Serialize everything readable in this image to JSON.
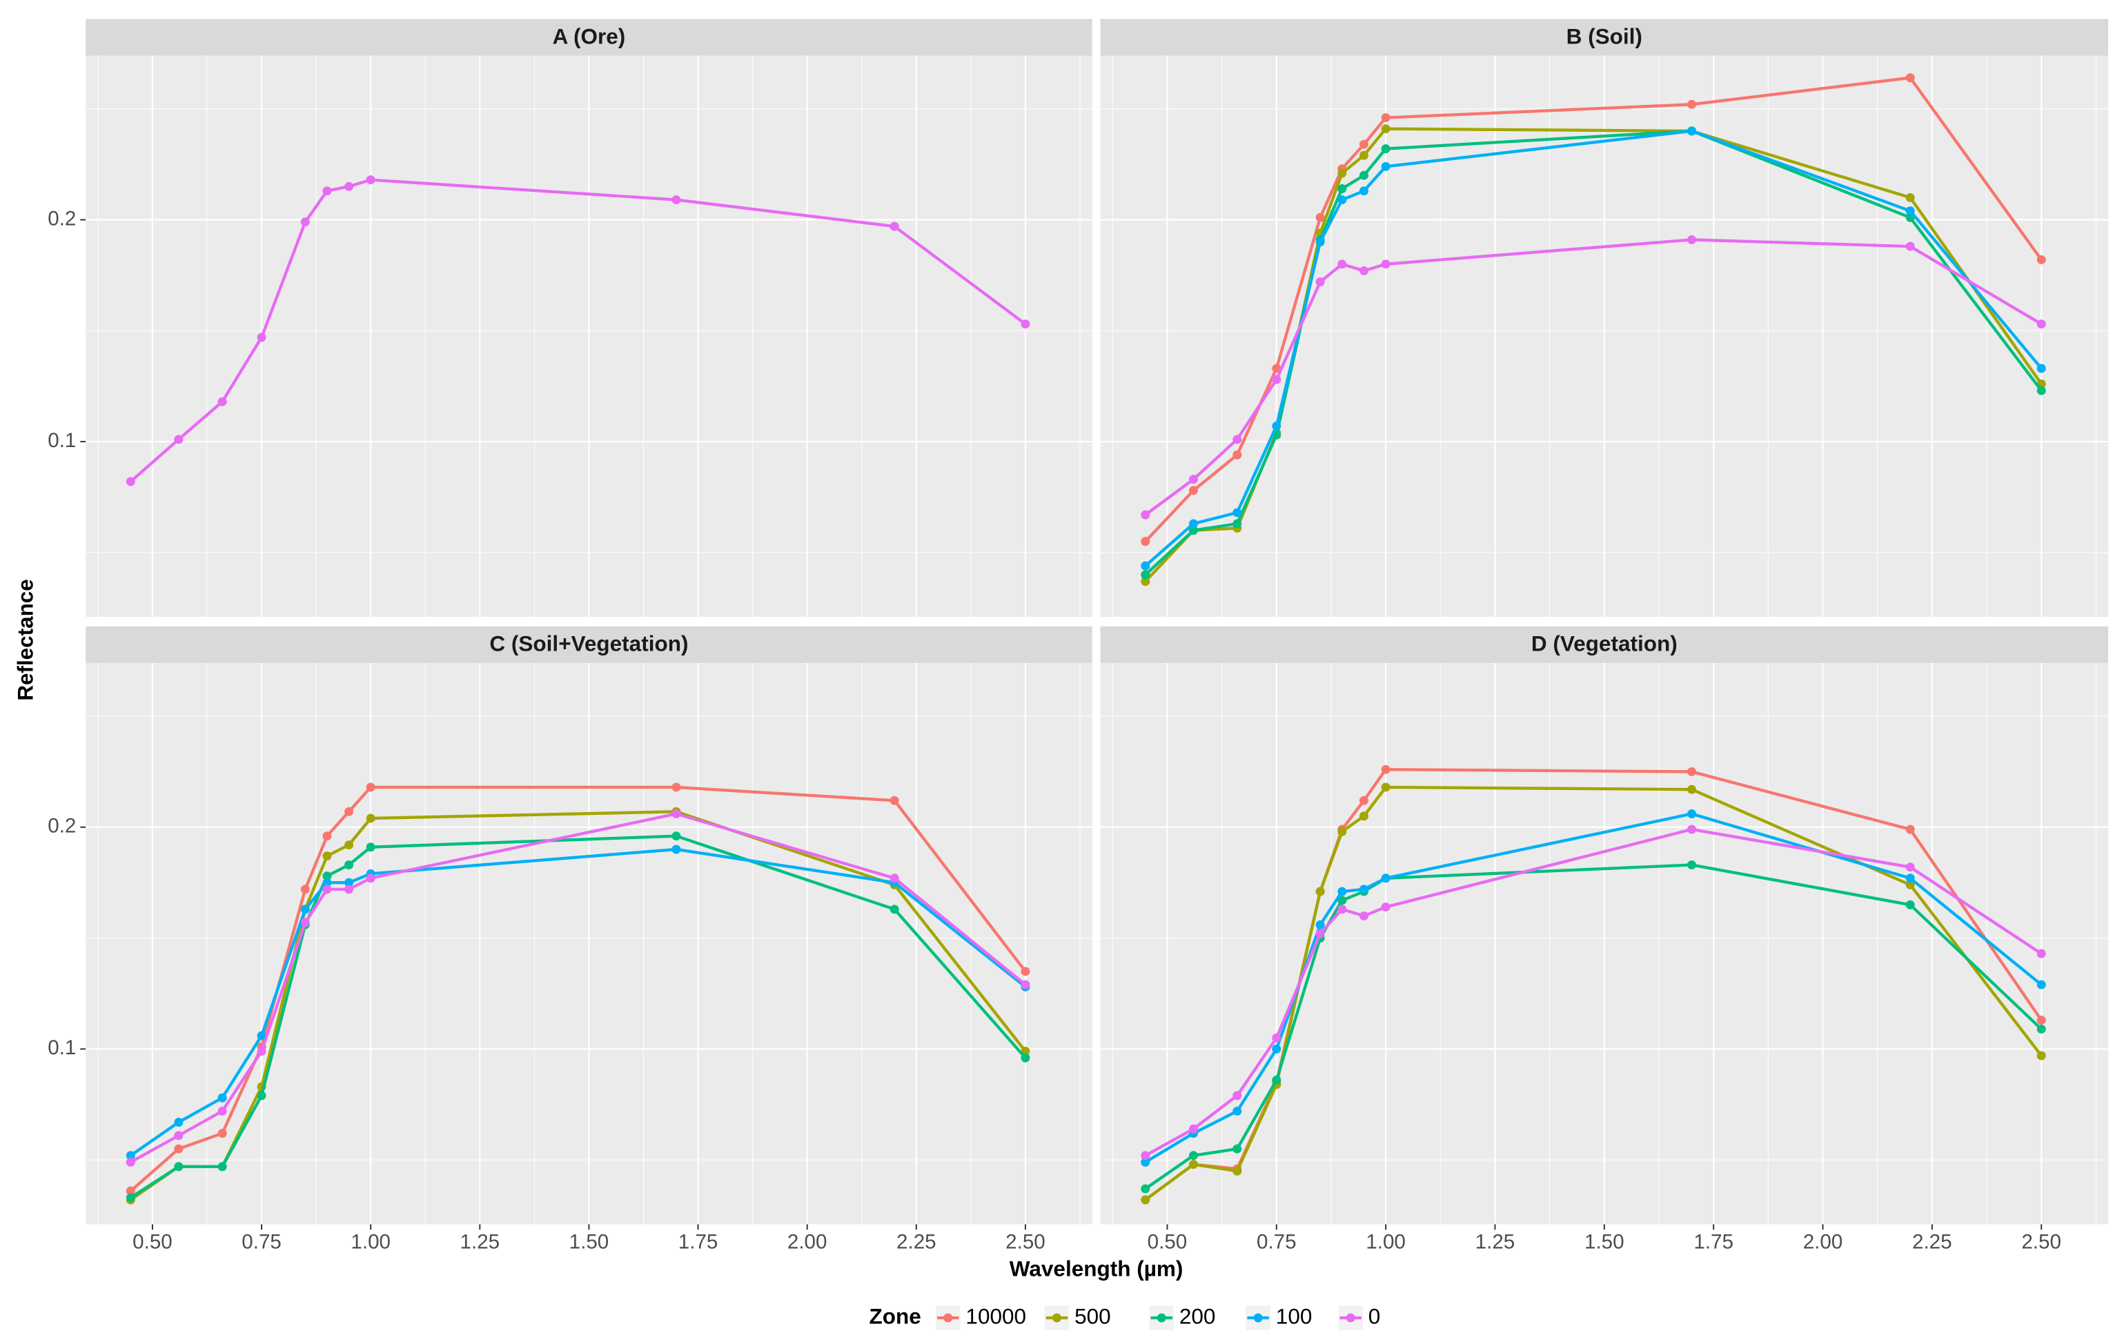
{
  "chart_data": {
    "type": "line",
    "xlabel": "Wavelength (µm)",
    "ylabel": "Reflectance",
    "legend_title": "Zone",
    "x": [
      0.45,
      0.56,
      0.66,
      0.75,
      0.85,
      0.9,
      0.95,
      1.0,
      1.7,
      2.2,
      2.5
    ],
    "xlim": [
      0.347,
      2.653
    ],
    "xticks": [
      {
        "value": 0.5,
        "label": "0.50"
      },
      0.75,
      {
        "value": 1,
        "label": "1.00"
      },
      1.25,
      {
        "value": 1.5,
        "label": "1.50"
      },
      1.75,
      {
        "value": 2,
        "label": "2.00"
      },
      2.25,
      {
        "value": 2.5,
        "label": "2.50"
      }
    ],
    "ylim": [
      0.021,
      0.274
    ],
    "yticks": [
      0.1,
      0.2
    ],
    "grid": true,
    "series": [
      {
        "name": "10000",
        "color": "#F8766D"
      },
      {
        "name": "500",
        "color": "#A3A500"
      },
      {
        "name": "200",
        "color": "#00BF7D"
      },
      {
        "name": "100",
        "color": "#00B0F6"
      },
      {
        "name": "0",
        "color": "#E76BF3"
      }
    ],
    "facets": [
      {
        "title": "A (Ore)",
        "values": [
          [
            null,
            null,
            null,
            null,
            null,
            null,
            null,
            null,
            null,
            null,
            null
          ],
          [
            null,
            null,
            null,
            null,
            null,
            null,
            null,
            null,
            null,
            null,
            null
          ],
          [
            null,
            null,
            null,
            null,
            null,
            null,
            null,
            null,
            null,
            null,
            null
          ],
          [
            null,
            null,
            null,
            null,
            null,
            null,
            null,
            null,
            null,
            null,
            null
          ],
          [
            0.082,
            0.101,
            0.118,
            0.147,
            0.199,
            0.213,
            0.215,
            0.218,
            0.209,
            0.197,
            0.153
          ]
        ]
      },
      {
        "title": "B (Soil)",
        "values": [
          [
            0.055,
            0.078,
            0.094,
            0.133,
            0.201,
            0.223,
            0.234,
            0.246,
            0.252,
            0.264,
            0.182
          ],
          [
            0.037,
            0.06,
            0.061,
            0.104,
            0.194,
            0.221,
            0.229,
            0.241,
            0.24,
            0.21,
            0.126
          ],
          [
            0.04,
            0.06,
            0.063,
            0.103,
            0.191,
            0.214,
            0.22,
            0.232,
            0.24,
            0.201,
            0.123
          ],
          [
            0.044,
            0.063,
            0.068,
            0.107,
            0.19,
            0.209,
            0.213,
            0.224,
            0.24,
            0.204,
            0.133
          ],
          [
            0.067,
            0.083,
            0.101,
            0.128,
            0.172,
            0.18,
            0.177,
            0.18,
            0.191,
            0.188,
            0.153
          ]
        ]
      },
      {
        "title": "C (Soil+Vegetation)",
        "values": [
          [
            0.036,
            0.055,
            0.062,
            0.101,
            0.172,
            0.196,
            0.207,
            0.218,
            0.218,
            0.212,
            0.135
          ],
          [
            0.032,
            0.047,
            0.047,
            0.083,
            0.163,
            0.187,
            0.192,
            0.204,
            0.207,
            0.174,
            0.099
          ],
          [
            0.033,
            0.047,
            0.047,
            0.079,
            0.156,
            0.178,
            0.183,
            0.191,
            0.196,
            0.163,
            0.096
          ],
          [
            0.052,
            0.067,
            0.078,
            0.106,
            0.163,
            0.175,
            0.175,
            0.179,
            0.19,
            0.175,
            0.128
          ],
          [
            0.049,
            0.061,
            0.072,
            0.099,
            0.157,
            0.172,
            0.172,
            0.177,
            0.206,
            0.177,
            0.129
          ]
        ]
      },
      {
        "title": "D (Vegetation)",
        "values": [
          [
            0.032,
            0.048,
            0.046,
            0.085,
            0.171,
            0.199,
            0.212,
            0.226,
            0.225,
            0.199,
            0.113
          ],
          [
            0.032,
            0.048,
            0.045,
            0.084,
            0.171,
            0.198,
            0.205,
            0.218,
            0.217,
            0.174,
            0.097
          ],
          [
            0.037,
            0.052,
            0.055,
            0.086,
            0.15,
            0.167,
            0.171,
            0.177,
            0.183,
            0.165,
            0.109
          ],
          [
            0.049,
            0.062,
            0.072,
            0.1,
            0.156,
            0.171,
            0.172,
            0.177,
            0.206,
            0.177,
            0.129
          ],
          [
            0.052,
            0.064,
            0.079,
            0.105,
            0.152,
            0.163,
            0.16,
            0.164,
            0.199,
            0.182,
            0.143
          ]
        ]
      }
    ]
  }
}
